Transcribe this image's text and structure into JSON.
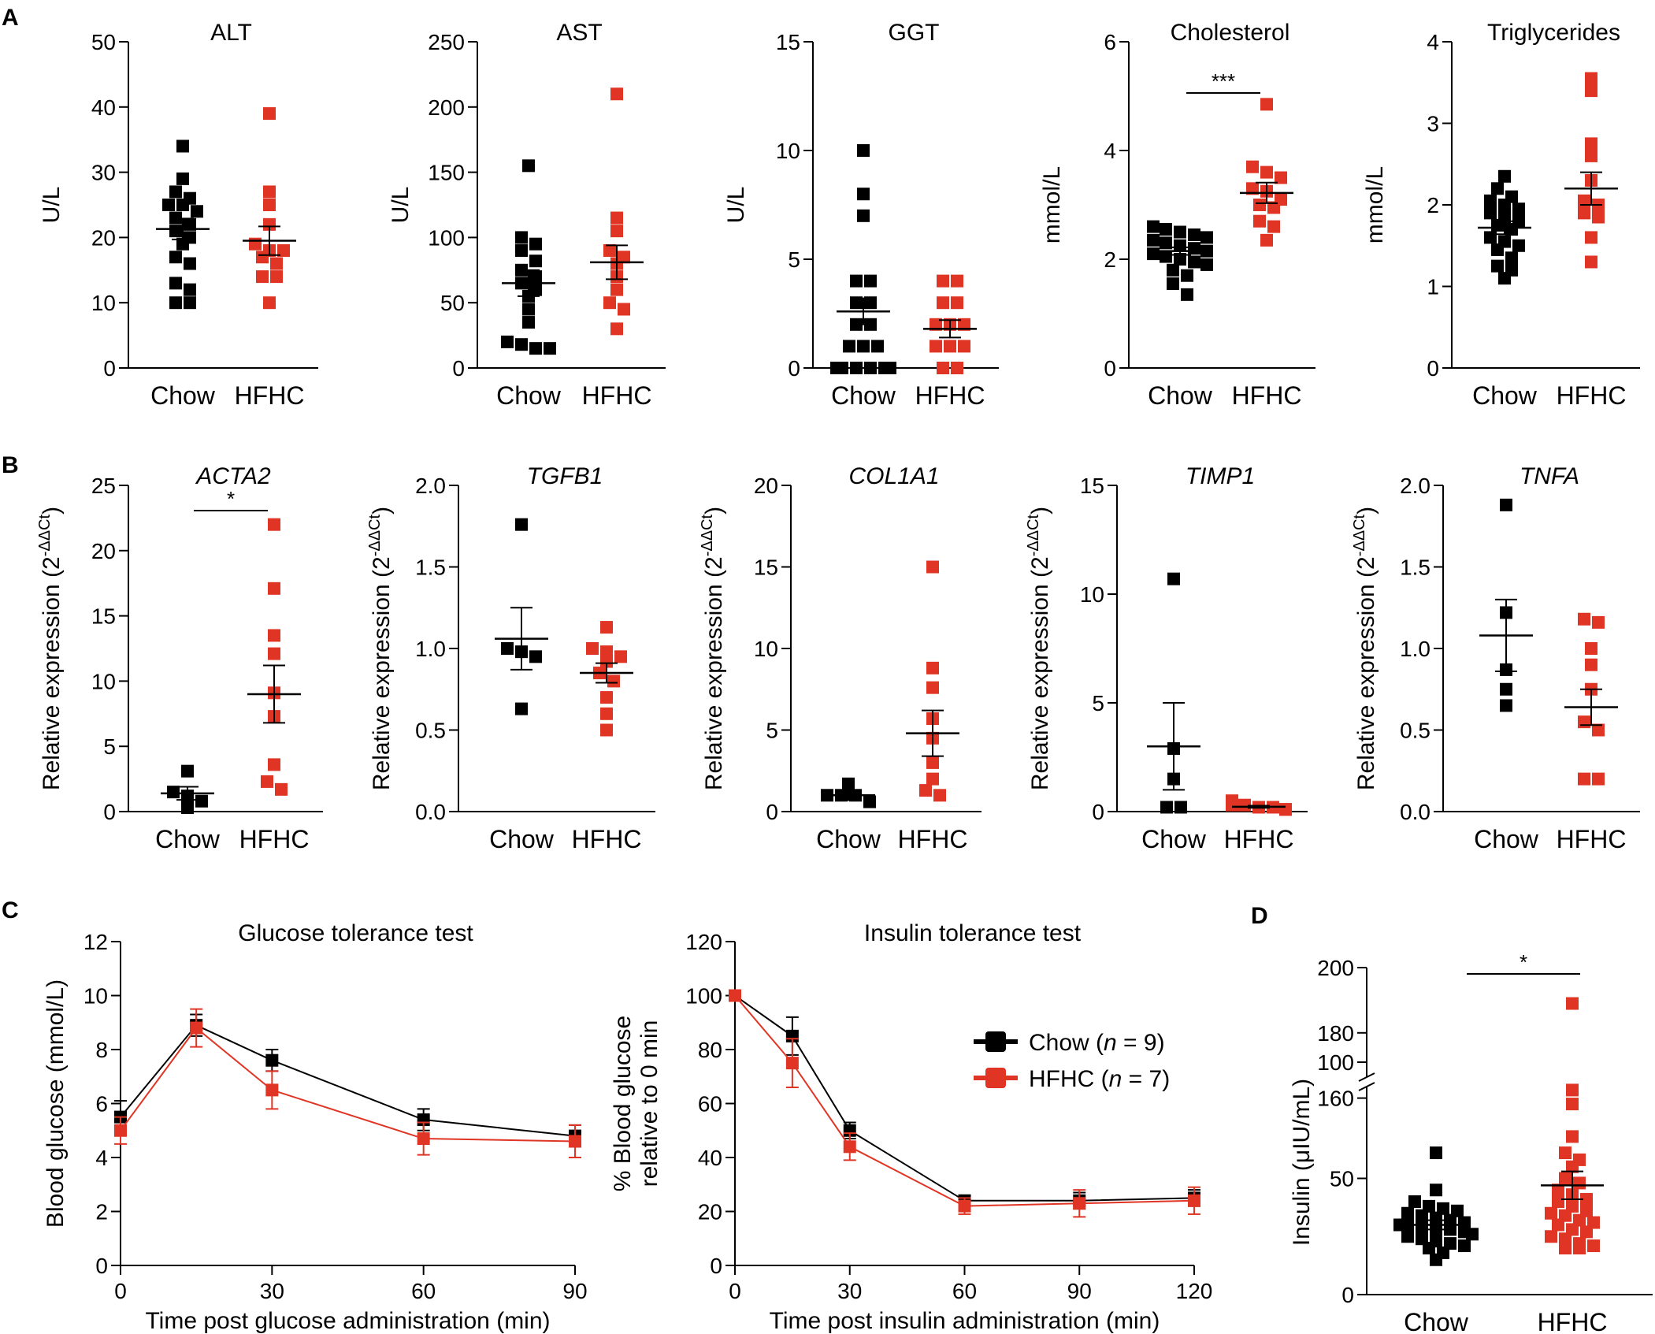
{
  "colors": {
    "chow": "#000000",
    "hfhc": "#e03524"
  },
  "panel_labels": [
    "A",
    "B",
    "C",
    "D"
  ],
  "chart_data": [
    {
      "id": "alt",
      "type": "scatter",
      "title": "ALT",
      "ylabel": "U/L",
      "categories": [
        "Chow",
        "HFHC"
      ],
      "ylim": [
        0,
        50
      ],
      "yticks": [
        "0",
        "10",
        "20",
        "30",
        "40",
        "50"
      ],
      "ytick_values": [
        0,
        10,
        20,
        30,
        40,
        50
      ],
      "series": [
        {
          "name": "Chow",
          "values": [
            34,
            29,
            27,
            26,
            25,
            25,
            24,
            23,
            22,
            21,
            20,
            19,
            17,
            16,
            13,
            12,
            10,
            10
          ],
          "mean": 21.3,
          "sem": 1.6
        },
        {
          "name": "HFHC",
          "values": [
            39,
            27,
            25,
            22,
            19,
            18,
            18,
            17,
            16,
            14,
            14,
            10
          ],
          "mean": 19.5,
          "sem": 2.2
        }
      ]
    },
    {
      "id": "ast",
      "type": "scatter",
      "title": "AST",
      "ylabel": "U/L",
      "categories": [
        "Chow",
        "HFHC"
      ],
      "ylim": [
        0,
        250
      ],
      "yticks": [
        "0",
        "50",
        "100",
        "150",
        "200",
        "250"
      ],
      "ytick_values": [
        0,
        50,
        100,
        150,
        200,
        250
      ],
      "series": [
        {
          "name": "Chow",
          "values": [
            155,
            100,
            95,
            90,
            82,
            75,
            70,
            65,
            60,
            55,
            45,
            35,
            20,
            18,
            15,
            15
          ],
          "mean": 65,
          "sem": 10
        },
        {
          "name": "HFHC",
          "values": [
            210,
            115,
            105,
            90,
            85,
            80,
            70,
            60,
            50,
            45,
            30
          ],
          "mean": 81,
          "sem": 13
        }
      ]
    },
    {
      "id": "ggt",
      "type": "scatter",
      "title": "GGT",
      "ylabel": "U/L",
      "categories": [
        "Chow",
        "HFHC"
      ],
      "ylim": [
        0,
        15
      ],
      "yticks": [
        "0",
        "5",
        "10",
        "15"
      ],
      "ytick_values": [
        0,
        5,
        10,
        15
      ],
      "series": [
        {
          "name": "Chow",
          "values": [
            10,
            8,
            7,
            4,
            4,
            3,
            3,
            2,
            2,
            1,
            1,
            1,
            0,
            0,
            0,
            0,
            0,
            0
          ],
          "mean": 2.6,
          "sem": 0.6
        },
        {
          "name": "HFHC",
          "values": [
            4,
            4,
            3,
            3,
            2,
            2,
            2,
            1,
            1,
            1,
            0,
            0
          ],
          "mean": 1.8,
          "sem": 0.4
        }
      ]
    },
    {
      "id": "chol",
      "type": "scatter",
      "title": "Cholesterol",
      "ylabel": "mmol/L",
      "categories": [
        "Chow",
        "HFHC"
      ],
      "ylim": [
        0,
        6
      ],
      "yticks": [
        "0",
        "2",
        "4",
        "6"
      ],
      "ytick_values": [
        0,
        2,
        4,
        6
      ],
      "significance": "***",
      "series": [
        {
          "name": "Chow",
          "values": [
            2.6,
            2.55,
            2.5,
            2.45,
            2.4,
            2.35,
            2.3,
            2.25,
            2.2,
            2.15,
            2.1,
            2.05,
            2.0,
            1.95,
            1.9,
            1.8,
            1.7,
            1.55,
            1.35
          ],
          "mean": 2.15,
          "sem": 0.07
        },
        {
          "name": "HFHC",
          "values": [
            4.85,
            3.7,
            3.6,
            3.5,
            3.3,
            3.25,
            3.1,
            3.0,
            2.95,
            2.7,
            2.6,
            2.35
          ],
          "mean": 3.22,
          "sem": 0.19
        }
      ]
    },
    {
      "id": "trig",
      "type": "scatter",
      "title": "Triglycerides",
      "ylabel": "mmol/L",
      "categories": [
        "Chow",
        "HFHC"
      ],
      "ylim": [
        0,
        4
      ],
      "yticks": [
        "0",
        "1",
        "2",
        "3",
        "4"
      ],
      "ytick_values": [
        0,
        1,
        2,
        3,
        4
      ],
      "series": [
        {
          "name": "Chow",
          "values": [
            2.35,
            2.2,
            2.1,
            2.05,
            2.0,
            1.95,
            1.9,
            1.85,
            1.8,
            1.75,
            1.7,
            1.6,
            1.55,
            1.5,
            1.45,
            1.35,
            1.25,
            1.2,
            1.1
          ],
          "mean": 1.72,
          "sem": 0.08
        },
        {
          "name": "HFHC",
          "values": [
            3.55,
            3.4,
            2.75,
            2.6,
            2.3,
            2.05,
            2.0,
            1.9,
            1.85,
            1.6,
            1.3
          ],
          "mean": 2.2,
          "sem": 0.2
        }
      ]
    },
    {
      "id": "acta2",
      "type": "scatter",
      "title": "ACTA2",
      "ylabel": "Relative expression (2",
      "ylabel_sup": "-ΔΔCt",
      "ylabel_close": ")",
      "categories": [
        "Chow",
        "HFHC"
      ],
      "ylim": [
        0,
        25
      ],
      "yticks": [
        "0",
        "5",
        "10",
        "15",
        "20",
        "25"
      ],
      "ytick_values": [
        0,
        5,
        10,
        15,
        20,
        25
      ],
      "significance": "*",
      "series": [
        {
          "name": "Chow",
          "values": [
            3.1,
            1.5,
            1.2,
            0.8,
            0.3
          ],
          "mean": 1.4,
          "sem": 0.5
        },
        {
          "name": "HFHC",
          "values": [
            22,
            17.1,
            13.5,
            12.1,
            9.1,
            7.3,
            3.6,
            2.3,
            1.7
          ],
          "mean": 9.0,
          "sem": 2.2
        }
      ]
    },
    {
      "id": "tgfb1",
      "type": "scatter",
      "title": "TGFB1",
      "ylabel": "Relative expression (2",
      "ylabel_sup": "-ΔΔCt",
      "ylabel_close": ")",
      "categories": [
        "Chow",
        "HFHC"
      ],
      "ylim": [
        0,
        2
      ],
      "yticks": [
        "0.0",
        "0.5",
        "1.0",
        "1.5",
        "2.0"
      ],
      "ytick_values": [
        0,
        0.5,
        1.0,
        1.5,
        2.0
      ],
      "series": [
        {
          "name": "Chow",
          "values": [
            1.76,
            1.0,
            0.98,
            0.95,
            0.63
          ],
          "mean": 1.06,
          "sem": 0.19
        },
        {
          "name": "HFHC",
          "values": [
            1.13,
            1.0,
            0.98,
            0.95,
            0.92,
            0.85,
            0.8,
            0.7,
            0.6,
            0.5
          ],
          "mean": 0.85,
          "sem": 0.06
        }
      ]
    },
    {
      "id": "col1a1",
      "type": "scatter",
      "title": "COL1A1",
      "ylabel": "Relative expression (2",
      "ylabel_sup": "-ΔΔCt",
      "ylabel_close": ")",
      "categories": [
        "Chow",
        "HFHC"
      ],
      "ylim": [
        0,
        20
      ],
      "yticks": [
        "0",
        "5",
        "10",
        "15",
        "20"
      ],
      "ytick_values": [
        0,
        5,
        10,
        15,
        20
      ],
      "series": [
        {
          "name": "Chow",
          "values": [
            1.7,
            1.0,
            1.0,
            1.0,
            0.6
          ],
          "mean": 1.0,
          "sem": 0.3
        },
        {
          "name": "HFHC",
          "values": [
            15,
            8.8,
            7.6,
            5.7,
            4.5,
            3.0,
            2.0,
            1.3,
            1.0
          ],
          "mean": 4.8,
          "sem": 1.4
        }
      ]
    },
    {
      "id": "timp1",
      "type": "scatter",
      "title": "TIMP1",
      "ylabel": "Relative expression (2",
      "ylabel_sup": "-ΔΔCt",
      "ylabel_close": ")",
      "categories": [
        "Chow",
        "HFHC"
      ],
      "ylim": [
        0,
        15
      ],
      "yticks": [
        "0",
        "5",
        "10",
        "15"
      ],
      "ytick_values": [
        0,
        5,
        10,
        15
      ],
      "series": [
        {
          "name": "Chow",
          "values": [
            10.7,
            2.9,
            1.5,
            0.2,
            0.2
          ],
          "mean": 3.0,
          "sem": 2.0
        },
        {
          "name": "HFHC",
          "values": [
            0.5,
            0.4,
            0.3,
            0.3,
            0.2,
            0.2,
            0.1,
            0.1,
            0.1
          ],
          "mean": 0.22,
          "sem": 0.05
        }
      ]
    },
    {
      "id": "tnfa",
      "type": "scatter",
      "title": "TNFA",
      "ylabel": "Relative expression (2",
      "ylabel_sup": "-ΔΔCt",
      "ylabel_close": ")",
      "categories": [
        "Chow",
        "HFHC"
      ],
      "ylim": [
        0,
        2
      ],
      "yticks": [
        "0.0",
        "0.5",
        "1.0",
        "1.5",
        "2.0"
      ],
      "ytick_values": [
        0,
        0.5,
        1.0,
        1.5,
        2.0
      ],
      "series": [
        {
          "name": "Chow",
          "values": [
            1.88,
            1.22,
            0.87,
            0.75,
            0.65
          ],
          "mean": 1.08,
          "sem": 0.22
        },
        {
          "name": "HFHC",
          "values": [
            1.18,
            1.16,
            1.0,
            0.9,
            0.75,
            0.55,
            0.5,
            0.2,
            0.2
          ],
          "mean": 0.64,
          "sem": 0.11
        }
      ]
    },
    {
      "id": "gtt",
      "type": "line",
      "title": "Glucose tolerance test",
      "xlabel": "Time post glucose administration (min)",
      "ylabel": "Blood glucose (mmol/L)",
      "xlim": [
        0,
        90
      ],
      "ylim": [
        0,
        12
      ],
      "xticks": [
        "0",
        "30",
        "60",
        "90"
      ],
      "xtick_values": [
        0,
        30,
        60,
        90
      ],
      "yticks": [
        "0",
        "2",
        "4",
        "6",
        "8",
        "10",
        "12"
      ],
      "ytick_values": [
        0,
        2,
        4,
        6,
        8,
        10,
        12
      ],
      "x": [
        0,
        15,
        30,
        60,
        90
      ],
      "series": [
        {
          "name": "Chow",
          "values": [
            5.5,
            8.9,
            7.6,
            5.4,
            4.8
          ],
          "errors": [
            0.6,
            0.4,
            0.4,
            0.4,
            0.4
          ]
        },
        {
          "name": "HFHC",
          "values": [
            5.0,
            8.8,
            6.5,
            4.7,
            4.6
          ],
          "errors": [
            0.5,
            0.7,
            0.7,
            0.6,
            0.6
          ]
        }
      ]
    },
    {
      "id": "itt",
      "type": "line",
      "title": "Insulin tolerance test",
      "xlabel": "Time post insulin administration (min)",
      "ylabel": "% Blood glucose",
      "ylabel2": "relative to 0 min",
      "xlim": [
        0,
        120
      ],
      "ylim": [
        0,
        120
      ],
      "xticks": [
        "0",
        "30",
        "60",
        "90",
        "120"
      ],
      "xtick_values": [
        0,
        30,
        60,
        90,
        120
      ],
      "yticks": [
        "0",
        "20",
        "40",
        "60",
        "80",
        "100",
        "120"
      ],
      "ytick_values": [
        0,
        20,
        40,
        60,
        80,
        100,
        120
      ],
      "x": [
        0,
        15,
        30,
        60,
        90,
        120
      ],
      "series": [
        {
          "name": "Chow",
          "values": [
            100,
            85,
            50,
            24,
            24,
            25
          ],
          "errors": [
            0,
            7,
            3,
            2,
            3,
            3
          ]
        },
        {
          "name": "HFHC",
          "values": [
            100,
            75,
            44,
            22,
            23,
            24
          ],
          "errors": [
            0,
            9,
            5,
            3,
            5,
            5
          ]
        }
      ],
      "legend": {
        "entries": [
          "Chow (",
          "HFHC ("
        ],
        "n_label": "n",
        "n_values": [
          " = 9)",
          " = 7)"
        ]
      }
    },
    {
      "id": "insulin",
      "type": "scatter",
      "title": "",
      "ylabel": "Insulin (μIU/mL)",
      "categories": [
        "Chow",
        "HFHC"
      ],
      "broken_axis": true,
      "ylim_lower": [
        0,
        100
      ],
      "ylim_upper": [
        150,
        200
      ],
      "yticks": [
        "0",
        "50",
        "100",
        "160",
        "180",
        "200"
      ],
      "ytick_values": [
        0,
        50,
        100,
        160,
        180,
        200
      ],
      "significance": "*",
      "series": [
        {
          "name": "Chow",
          "values": [
            61,
            45,
            40,
            38,
            37,
            36,
            35,
            34,
            33,
            32,
            31,
            30,
            30,
            29,
            28,
            28,
            27,
            26,
            25,
            24,
            23,
            22,
            21,
            20,
            18,
            15
          ],
          "mean": 30,
          "sem": 2
        },
        {
          "name": "HFHC",
          "values": [
            189,
            88,
            82,
            68,
            61,
            58,
            55,
            50,
            48,
            45,
            43,
            41,
            40,
            38,
            36,
            35,
            34,
            32,
            31,
            30,
            28,
            27,
            25,
            24,
            22,
            21,
            20,
            20
          ],
          "mean": 47,
          "sem": 6
        }
      ]
    }
  ]
}
